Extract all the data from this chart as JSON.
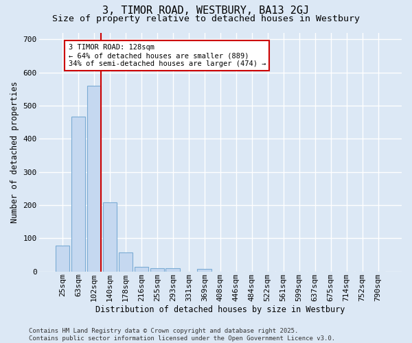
{
  "title": "3, TIMOR ROAD, WESTBURY, BA13 2GJ",
  "subtitle": "Size of property relative to detached houses in Westbury",
  "xlabel": "Distribution of detached houses by size in Westbury",
  "ylabel": "Number of detached properties",
  "categories": [
    "25sqm",
    "63sqm",
    "102sqm",
    "140sqm",
    "178sqm",
    "216sqm",
    "255sqm",
    "293sqm",
    "331sqm",
    "369sqm",
    "408sqm",
    "446sqm",
    "484sqm",
    "522sqm",
    "561sqm",
    "599sqm",
    "637sqm",
    "675sqm",
    "714sqm",
    "752sqm",
    "790sqm"
  ],
  "values": [
    78,
    467,
    560,
    208,
    57,
    14,
    9,
    9,
    0,
    8,
    0,
    0,
    0,
    0,
    0,
    0,
    0,
    0,
    0,
    0,
    0
  ],
  "bar_color": "#c5d8f0",
  "bar_edge_color": "#7aabd4",
  "vline_color": "#cc0000",
  "annotation_text": "3 TIMOR ROAD: 128sqm\n← 64% of detached houses are smaller (889)\n34% of semi-detached houses are larger (474) →",
  "annotation_box_color": "#ffffff",
  "annotation_box_edge": "#cc0000",
  "ylim": [
    0,
    720
  ],
  "yticks": [
    0,
    100,
    200,
    300,
    400,
    500,
    600,
    700
  ],
  "background_color": "#dce8f5",
  "grid_color": "#ffffff",
  "footer": "Contains HM Land Registry data © Crown copyright and database right 2025.\nContains public sector information licensed under the Open Government Licence v3.0.",
  "title_fontsize": 11,
  "subtitle_fontsize": 9.5,
  "label_fontsize": 8.5,
  "tick_fontsize": 8,
  "annotation_fontsize": 7.5,
  "footer_fontsize": 6.5
}
